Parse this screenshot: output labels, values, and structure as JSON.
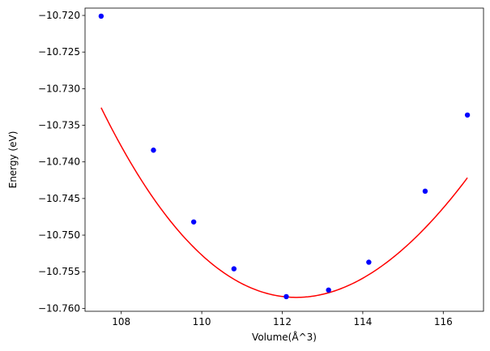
{
  "chart_data": {
    "type": "scatter",
    "xlabel": "Volume(Å^3)",
    "ylabel": "Energy (eV)",
    "xlim": [
      107.1,
      117.0
    ],
    "ylim": [
      -10.7604,
      -10.719
    ],
    "x_ticks": [
      108,
      110,
      112,
      114,
      116
    ],
    "x_tick_labels": [
      "108",
      "110",
      "112",
      "114",
      "116"
    ],
    "y_ticks": [
      -10.72,
      -10.725,
      -10.73,
      -10.735,
      -10.74,
      -10.745,
      -10.75,
      -10.755,
      -10.76
    ],
    "y_tick_labels": [
      "−10.720",
      "−10.725",
      "−10.730",
      "−10.735",
      "−10.740",
      "−10.745",
      "−10.750",
      "−10.755",
      "−10.760"
    ],
    "grid": false,
    "series": [
      {
        "kind": "points",
        "color": "#0000ff",
        "x": [
          107.5,
          108.8,
          109.8,
          110.8,
          112.1,
          113.15,
          114.15,
          115.55,
          116.6
        ],
        "y": [
          -10.7201,
          -10.7384,
          -10.7482,
          -10.7546,
          -10.7584,
          -10.7575,
          -10.7537,
          -10.744,
          -10.7336
        ]
      },
      {
        "kind": "fit-curve",
        "color": "#ff0000",
        "x_range": [
          107.5,
          116.6
        ],
        "min_x": 112.35,
        "min_y": -10.7585,
        "coefficients": {
          "a": 0.000996,
          "b": 2.17e-05
        }
      }
    ]
  }
}
